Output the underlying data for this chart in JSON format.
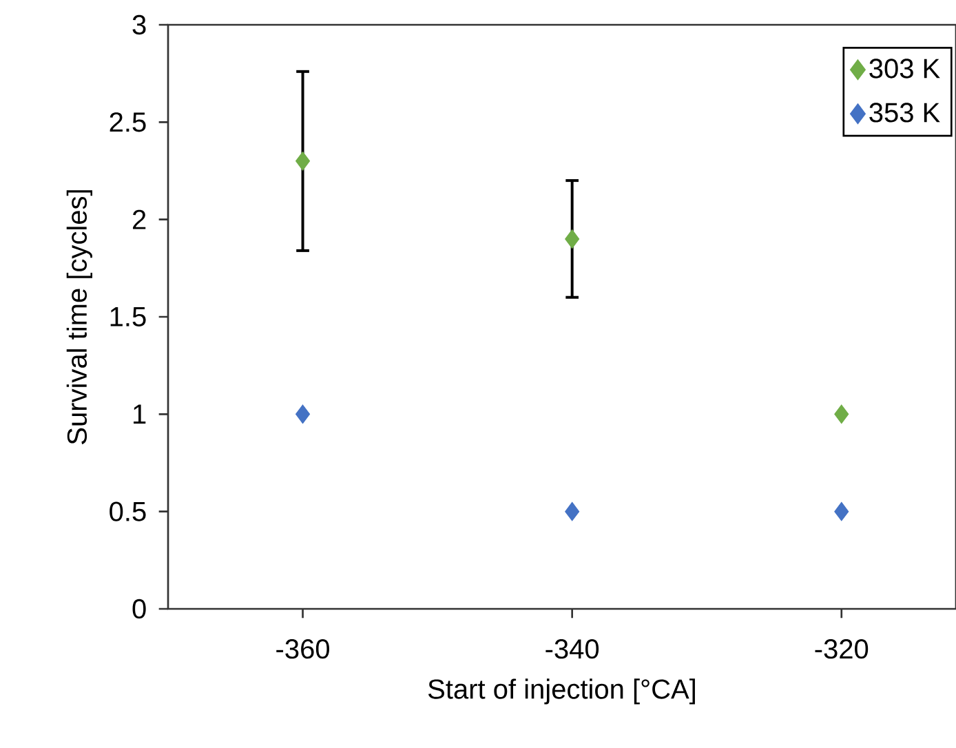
{
  "chart_data": {
    "type": "scatter",
    "xlabel": "Start of injection [°CA]",
    "ylabel": "Survival time [cycles]",
    "x": [
      -360,
      -340,
      -320
    ],
    "series": [
      {
        "name": "303 K",
        "color": "#70ad47",
        "values": [
          2.3,
          1.9,
          1.0
        ],
        "errors": [
          0.46,
          0.3,
          null
        ]
      },
      {
        "name": "353 K",
        "color": "#4472c4",
        "values": [
          1.0,
          0.5,
          0.5
        ]
      }
    ],
    "xlim": [
      -370,
      -311.5
    ],
    "xticks": [
      -360,
      -340,
      -320
    ],
    "ylim": [
      0,
      3
    ],
    "yticks": [
      0,
      0.5,
      1,
      1.5,
      2,
      2.5,
      3
    ],
    "marker": "diamond",
    "legend": "top right",
    "grid": false
  }
}
